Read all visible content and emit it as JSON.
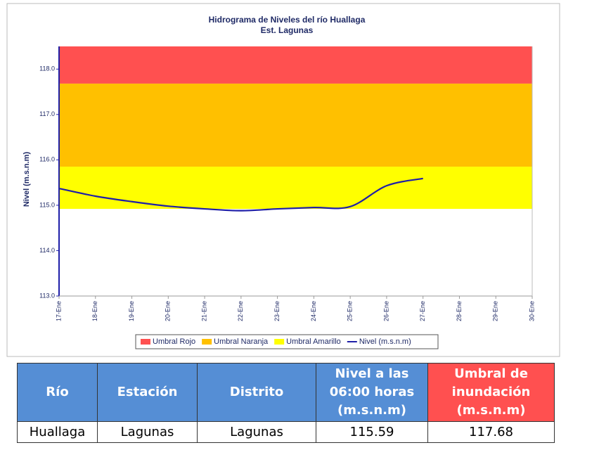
{
  "chart_data": {
    "type": "line",
    "title": "Hidrograma de Niveles del río Huallaga",
    "subtitle": "Est. Lagunas",
    "y_label": "Nivel (m.s.n.m)",
    "categories": [
      "17-Ene",
      "18-Ene",
      "19-Ene",
      "20-Ene",
      "21-Ene",
      "22-Ene",
      "23-Ene",
      "24-Ene",
      "25-Ene",
      "26-Ene",
      "27-Ene",
      "28-Ene",
      "29-Ene",
      "30-Ene"
    ],
    "thresholds": [
      {
        "name": "Umbral Rojo",
        "color": "#ff5050",
        "value": 117.68
      },
      {
        "name": "Umbral Naranja",
        "color": "#ffc000",
        "value": 115.85
      },
      {
        "name": "Umbral Amarillo",
        "color": "#ffff00",
        "value": 114.92
      }
    ],
    "series": [
      {
        "name": "Nivel (m.s.n.m)",
        "color": "#1f1fa8",
        "values": [
          115.37,
          115.2,
          115.08,
          114.98,
          114.92,
          114.88,
          114.92,
          114.95,
          114.97,
          115.43,
          115.59,
          null,
          null,
          null
        ]
      }
    ],
    "ylim": [
      113,
      118.5
    ],
    "yticks": [
      {
        "value": 113,
        "label": "113.0"
      },
      {
        "value": 114,
        "label": "114.0"
      },
      {
        "value": 115,
        "label": "115.0"
      },
      {
        "value": 116,
        "label": "116.0"
      },
      {
        "value": 117,
        "label": "117.0"
      },
      {
        "value": 118,
        "label": "118.0"
      }
    ]
  },
  "table": {
    "header": [
      "Río",
      "Estación",
      "Distrito",
      "Nivel a las 06:00 horas (m.s.n.m)",
      "Umbral de inundación (m.s.n.m)"
    ],
    "rows": [
      [
        "Huallaga",
        "Lagunas",
        "Lagunas",
        115.59,
        117.68
      ]
    ]
  }
}
